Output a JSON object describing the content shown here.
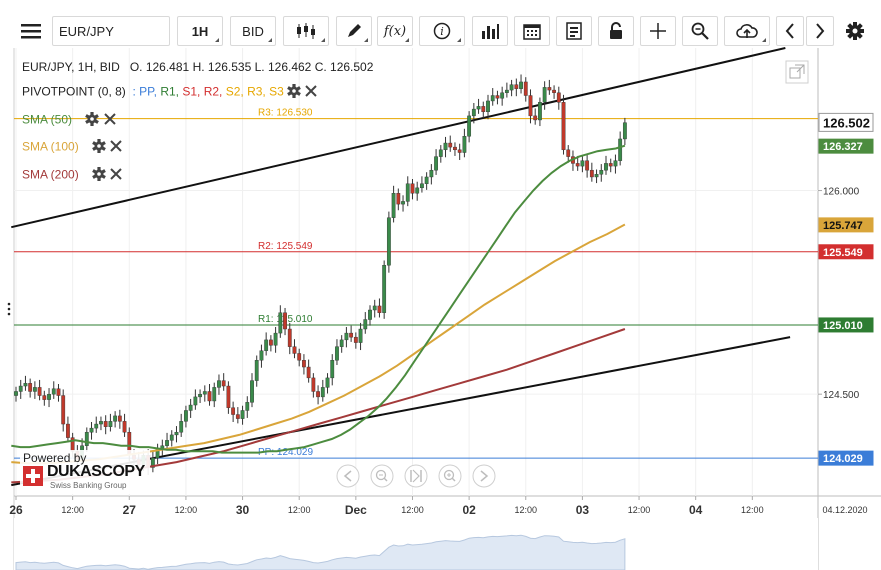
{
  "toolbar": {
    "symbol": "EUR/JPY",
    "timeframe": "1H",
    "price_side": "BID",
    "icons": [
      "menu-icon",
      "candles-icon",
      "pencil-icon",
      "function-icon",
      "info-icon",
      "bars-icon",
      "calendar-icon",
      "report-icon",
      "lock-icon",
      "crosshair-icon",
      "zoom-icon",
      "cloud-upload-icon",
      "chevron-left-icon",
      "chevron-right-icon",
      "gear-icon"
    ]
  },
  "ohlc_header": {
    "instrument": "EUR/JPY, 1H, BID",
    "open": "O. 126.481",
    "high": "H. 126.535",
    "low": "L. 126.462",
    "close": "C. 126.502"
  },
  "indicators": {
    "pivot": {
      "label": "PIVOTPOINT (0, 8)",
      "separator": ":",
      "levels": [
        {
          "name": "PP",
          "color": "#3b7dd8"
        },
        {
          "name": "R1",
          "color": "#2e7d32"
        },
        {
          "name": "S1",
          "color": "#d32f2f"
        },
        {
          "name": "R2",
          "color": "#d32f2f"
        },
        {
          "name": "S2",
          "color": "#e6a700"
        },
        {
          "name": "R3",
          "color": "#e6a700"
        },
        {
          "name": "S3",
          "color": "#e6a700"
        }
      ]
    },
    "sma50": {
      "label": "SMA (50)",
      "color": "#4c8c3f"
    },
    "sma100": {
      "label": "SMA (100)",
      "color": "#d9a53a"
    },
    "sma200": {
      "label": "SMA (200)",
      "color": "#a33a3a"
    }
  },
  "powered_by": {
    "line1": "Powered by",
    "brand": "DUKASCOPY",
    "tagline": "Swiss Banking Group"
  },
  "chart_data": {
    "type": "line",
    "ylim": [
      123.75,
      127.05
    ],
    "y_ticks": [
      124.5,
      126.0
    ],
    "y_tick_labels": [
      "124.500",
      "126.000"
    ],
    "x_labels": [
      {
        "t": 0,
        "text": "26",
        "major": true
      },
      {
        "t": 12,
        "text": "12:00"
      },
      {
        "t": 24,
        "text": "27",
        "major": true
      },
      {
        "t": 36,
        "text": "12:00"
      },
      {
        "t": 48,
        "text": "30",
        "major": true
      },
      {
        "t": 60,
        "text": "12:00"
      },
      {
        "t": 72,
        "text": "Dec",
        "major": true
      },
      {
        "t": 84,
        "text": "12:00"
      },
      {
        "t": 96,
        "text": "02",
        "major": true
      },
      {
        "t": 108,
        "text": "12:00"
      },
      {
        "t": 120,
        "text": "03",
        "major": true
      },
      {
        "t": 132,
        "text": "12:00"
      },
      {
        "t": 144,
        "text": "04",
        "major": true
      },
      {
        "t": 156,
        "text": "12:00"
      }
    ],
    "date_label": "04.12.2020",
    "pivot_lines": [
      {
        "name": "R3",
        "label": "R3: 126.530",
        "value": 126.53,
        "color": "#e6a700"
      },
      {
        "name": "R2",
        "label": "R2: 125.549",
        "value": 125.549,
        "color": "#d32f2f"
      },
      {
        "name": "R1",
        "label": "R1: 125.010",
        "value": 125.01,
        "color": "#2e7d32"
      },
      {
        "name": "PP",
        "label": "PP: 124.029",
        "value": 124.029,
        "color": "#3b7dd8"
      }
    ],
    "price_badges": [
      {
        "text": "126.502",
        "value": 126.502,
        "bg": "#ffffff",
        "fg": "#111111",
        "border": "#999999",
        "big": true
      },
      {
        "text": "126.327",
        "value": 126.327,
        "bg": "#4c8c3f",
        "fg": "#ffffff"
      },
      {
        "text": "125.747",
        "value": 125.747,
        "bg": "#d9a53a",
        "fg": "#111111"
      },
      {
        "text": "125.549",
        "value": 125.549,
        "bg": "#d32f2f",
        "fg": "#ffffff"
      },
      {
        "text": "125.010",
        "value": 125.01,
        "bg": "#2e7d32",
        "fg": "#ffffff"
      },
      {
        "text": "124.029",
        "value": 124.029,
        "bg": "#3b7dd8",
        "fg": "#ffffff"
      }
    ],
    "close": [
      124.52,
      124.56,
      124.58,
      124.52,
      124.55,
      124.49,
      124.46,
      124.5,
      124.54,
      124.49,
      124.28,
      124.18,
      124.08,
      124.02,
      124.12,
      124.22,
      124.25,
      124.28,
      124.3,
      124.26,
      124.3,
      124.34,
      124.3,
      124.22,
      124.05,
      124.02,
      123.98,
      124.05,
      123.96,
      124.03,
      124.1,
      124.12,
      124.16,
      124.2,
      124.22,
      124.3,
      124.38,
      124.42,
      124.48,
      124.5,
      124.52,
      124.45,
      124.55,
      124.6,
      124.56,
      124.4,
      124.35,
      124.32,
      124.38,
      124.44,
      124.6,
      124.75,
      124.82,
      124.9,
      124.86,
      124.95,
      125.1,
      124.98,
      124.85,
      124.8,
      124.75,
      124.7,
      124.62,
      124.52,
      124.48,
      124.55,
      124.62,
      124.75,
      124.85,
      124.9,
      124.95,
      124.92,
      124.88,
      124.98,
      125.05,
      125.12,
      125.15,
      125.1,
      125.45,
      125.8,
      125.98,
      125.9,
      125.92,
      126.05,
      125.98,
      126.02,
      126.05,
      126.1,
      126.15,
      126.25,
      126.3,
      126.35,
      126.32,
      126.3,
      126.28,
      126.4,
      126.55,
      126.6,
      126.62,
      126.58,
      126.66,
      126.7,
      126.68,
      126.72,
      126.74,
      126.78,
      126.75,
      126.8,
      126.7,
      126.55,
      126.52,
      126.65,
      126.76,
      126.74,
      126.72,
      126.65,
      126.3,
      126.25,
      126.2,
      126.18,
      126.22,
      126.15,
      126.1,
      126.12,
      126.15,
      126.2,
      126.18,
      126.22,
      126.38,
      126.5
    ],
    "sma50": [
      124.12,
      124.11,
      124.11,
      124.12,
      124.13,
      124.14,
      124.15,
      124.16,
      124.15,
      124.14,
      124.14,
      124.13,
      124.12,
      124.12,
      124.11,
      124.11,
      124.1,
      124.09,
      124.09,
      124.08,
      124.08,
      124.08,
      124.08,
      124.07,
      124.07,
      124.07,
      124.07,
      124.07,
      124.08,
      124.08,
      124.09,
      124.1,
      124.11,
      124.13,
      124.15,
      124.17,
      124.2,
      124.24,
      124.29,
      124.34,
      124.4,
      124.47,
      124.55,
      124.64,
      124.74,
      124.84,
      124.94,
      125.04,
      125.14,
      125.24,
      125.34,
      125.44,
      125.54,
      125.64,
      125.74,
      125.84,
      125.92,
      126.0,
      126.07,
      126.13,
      126.18,
      126.22,
      126.25,
      126.27,
      126.29,
      126.3,
      126.31,
      126.33
    ],
    "sma100": [
      124.0,
      123.99,
      123.99,
      124.0,
      124.01,
      124.02,
      124.04,
      124.06,
      124.08,
      124.1,
      124.12,
      124.14,
      124.17,
      124.2,
      124.24,
      124.28,
      124.32,
      124.37,
      124.43,
      124.49,
      124.56,
      124.63,
      124.71,
      124.8,
      124.89,
      124.98,
      125.07,
      125.16,
      125.24,
      125.32,
      125.4,
      125.48,
      125.55,
      125.62,
      125.68,
      125.75
    ],
    "sma200": [
      123.85,
      123.86,
      123.87,
      123.89,
      123.91,
      123.94,
      123.97,
      124.0,
      124.04,
      124.08,
      124.13,
      124.18,
      124.23,
      124.28,
      124.33,
      124.38,
      124.43,
      124.48,
      124.53,
      124.58,
      124.63,
      124.68,
      124.74,
      124.8,
      124.86,
      124.92,
      124.98
    ],
    "trendlines": [
      {
        "from": [
          -1,
          125.73
        ],
        "to": [
          163,
          127.05
        ],
        "color": "#111111"
      },
      {
        "from": [
          -1,
          123.83
        ],
        "to": [
          164,
          124.92
        ],
        "color": "#111111"
      }
    ]
  },
  "nav_controls": [
    "prev-icon",
    "zoom-out-icon",
    "reset-icon",
    "zoom-in-icon",
    "next-icon"
  ]
}
